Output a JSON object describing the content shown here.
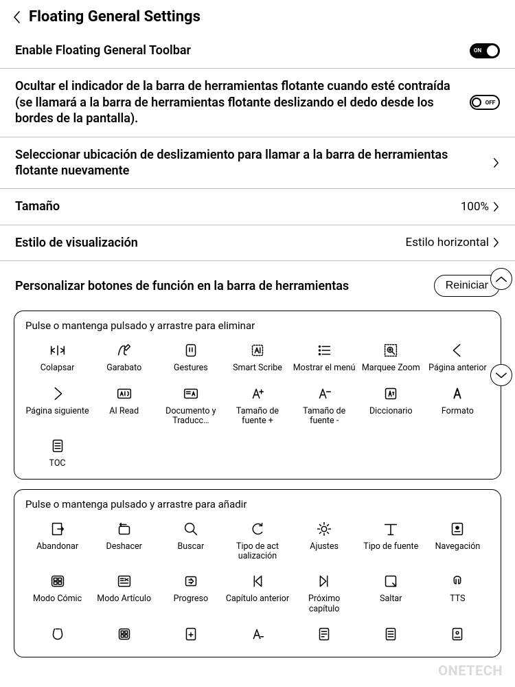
{
  "header": {
    "title": "Floating General Settings"
  },
  "rows": {
    "enable": {
      "label": "Enable Floating General Toolbar",
      "toggle_state": "ON"
    },
    "hide_indicator": {
      "label": "Ocultar el indicador de la barra de herramientas flotante cuando esté contraída (se llamará a la barra de herramientas flotante deslizando el dedo desde los bordes de la pantalla).",
      "toggle_state": "OFF"
    },
    "swipe_location": {
      "label": "Seleccionar ubicación de deslizamiento para llamar a la barra de herramientas flotante nuevamente"
    },
    "size": {
      "label": "Tamaño",
      "value": "100%"
    },
    "display_style": {
      "label": "Estilo de visualización",
      "value": "Estilo horizontal"
    }
  },
  "customize": {
    "title": "Personalizar botones de función en la barra de herramientas",
    "reset_label": "Reiniciar"
  },
  "panel_remove": {
    "hint": "Pulse o mantenga pulsado y arrastre para eliminar",
    "items": [
      {
        "icon": "collapse",
        "label": "Colapsar"
      },
      {
        "icon": "scribble",
        "label": "Garabato"
      },
      {
        "icon": "gestures",
        "label": "Gestures"
      },
      {
        "icon": "smart-scribe",
        "label": "Smart Scribe"
      },
      {
        "icon": "show-menu",
        "label": "Mostrar el menú"
      },
      {
        "icon": "marquee-zoom",
        "label": "Marquee Zoom"
      },
      {
        "icon": "prev-page",
        "label": "Página anterior"
      },
      {
        "icon": "next-page",
        "label": "Página siguiente"
      },
      {
        "icon": "ai-read",
        "label": "AI Read"
      },
      {
        "icon": "doc-translate",
        "label": "Documento y Traducc…"
      },
      {
        "icon": "font-plus",
        "label": "Tamaño de fuente +"
      },
      {
        "icon": "font-minus",
        "label": "Tamaño de fuente -"
      },
      {
        "icon": "dictionary",
        "label": "Diccionario"
      },
      {
        "icon": "format",
        "label": "Formato"
      },
      {
        "icon": "toc",
        "label": "TOC"
      }
    ]
  },
  "panel_add": {
    "hint": "Pulse o mantenga pulsado y arrastre para añadir",
    "items": [
      {
        "icon": "abandon",
        "label": "Abandonar"
      },
      {
        "icon": "undo",
        "label": "Deshacer"
      },
      {
        "icon": "search",
        "label": "Buscar"
      },
      {
        "icon": "refresh-type",
        "label": "Tipo de act ualización"
      },
      {
        "icon": "settings",
        "label": "Ajustes"
      },
      {
        "icon": "font-type",
        "label": "Tipo de fuente"
      },
      {
        "icon": "navigation",
        "label": "Navegación"
      },
      {
        "icon": "comic-mode",
        "label": "Modo Cómic"
      },
      {
        "icon": "article-mode",
        "label": "Modo Artículo"
      },
      {
        "icon": "progress",
        "label": "Progreso"
      },
      {
        "icon": "chapter-prev",
        "label": "Capítulo anterior"
      },
      {
        "icon": "chapter-next",
        "label": "Próximo capítulo"
      },
      {
        "icon": "skip",
        "label": "Saltar"
      },
      {
        "icon": "tts",
        "label": "TTS"
      },
      {
        "icon": "x1",
        "label": ""
      },
      {
        "icon": "x2",
        "label": ""
      },
      {
        "icon": "x3",
        "label": ""
      },
      {
        "icon": "x4",
        "label": ""
      },
      {
        "icon": "x5",
        "label": ""
      },
      {
        "icon": "x6",
        "label": ""
      },
      {
        "icon": "x7",
        "label": ""
      }
    ]
  },
  "watermark": "ONETECH",
  "colors": {
    "bg": "#ffffff",
    "text": "#000000",
    "divider": "#bfbfbf",
    "watermark": "#d4d4d4"
  }
}
